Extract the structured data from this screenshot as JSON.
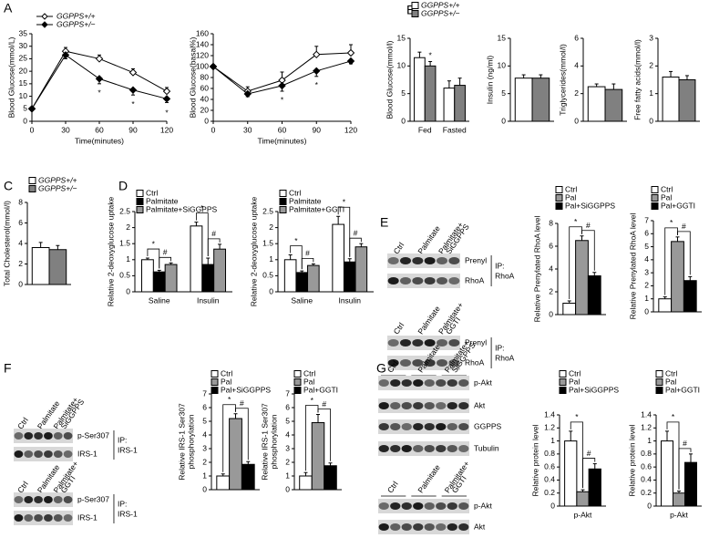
{
  "panels": [
    "A",
    "B",
    "C",
    "D",
    "E",
    "F",
    "G"
  ],
  "chart_data": [
    {
      "type": "line",
      "ylabel": "Blood Glucose(mmol/L)",
      "xlabel": "Time(minutes)",
      "x": [
        0,
        30,
        60,
        90,
        120
      ],
      "xlim": [
        0,
        120
      ],
      "xticks": [
        0,
        30,
        60,
        90,
        120
      ],
      "ylim": [
        0,
        35
      ],
      "yticks": [
        0,
        5,
        10,
        15,
        20,
        25,
        30,
        35
      ],
      "series": [
        {
          "name": "GGPPS+/+",
          "color": "#000000",
          "marker_fill": "#ffffff",
          "values": [
            5,
            28,
            25,
            19.5,
            12
          ],
          "errors": [
            0.5,
            1.5,
            1.5,
            1.5,
            1.5
          ]
        },
        {
          "name": "GGPPS+/−",
          "color": "#000000",
          "marker_fill": "#000000",
          "values": [
            5,
            26.5,
            17,
            12.5,
            9
          ],
          "errors": [
            0.5,
            1.5,
            2,
            2,
            1.5
          ]
        }
      ],
      "annotations": [
        {
          "text": "*",
          "x": 60
        },
        {
          "text": "*",
          "x": 90
        },
        {
          "text": "*",
          "x": 120
        }
      ]
    },
    {
      "type": "line",
      "ylabel": "Blood Glucose(basal%)",
      "xlabel": "Time(minutes)",
      "x": [
        0,
        30,
        60,
        90,
        120
      ],
      "xlim": [
        0,
        120
      ],
      "xticks": [
        0,
        30,
        60,
        90,
        120
      ],
      "ylim": [
        0,
        160
      ],
      "yticks": [
        0,
        20,
        40,
        60,
        80,
        100,
        120,
        140,
        160
      ],
      "series": [
        {
          "color": "#000000",
          "marker_fill": "#ffffff",
          "values": [
            100,
            55,
            75,
            122,
            125
          ],
          "errors": [
            3,
            8,
            15,
            15,
            15
          ]
        },
        {
          "color": "#000000",
          "marker_fill": "#000000",
          "values": [
            100,
            50,
            65,
            92,
            110
          ],
          "errors": [
            3,
            5,
            10,
            10,
            5
          ]
        }
      ],
      "annotations": [
        {
          "text": "*",
          "x": 60
        },
        {
          "text": "*",
          "x": 90
        }
      ]
    },
    {
      "type": "bar",
      "ylabel": "Blood Glucose(mmol/l)",
      "categories": [
        "Fed",
        "Fasted"
      ],
      "ylim": [
        0,
        15
      ],
      "yticks": [
        0,
        5,
        10,
        15
      ],
      "series": [
        {
          "name": "GGPPS+/+",
          "color": "#ffffff",
          "values": [
            11.5,
            6
          ],
          "errors": [
            1,
            1.3
          ]
        },
        {
          "name": "GGPPS+/−",
          "color": "#808080",
          "values": [
            10,
            6.5
          ],
          "errors": [
            0.8,
            1.3
          ]
        }
      ],
      "annotations": [
        [
          "*"
        ],
        []
      ]
    },
    {
      "type": "bar",
      "ylabel": "Insulin (ng/ml)",
      "categories": [
        null
      ],
      "ylim": [
        0,
        15
      ],
      "yticks": [
        0,
        5,
        10,
        15
      ],
      "series": [
        {
          "color": "#ffffff",
          "values": [
            7.8
          ],
          "errors": [
            0.6
          ]
        },
        {
          "color": "#808080",
          "values": [
            7.8
          ],
          "errors": [
            0.6
          ]
        }
      ]
    },
    {
      "type": "bar",
      "ylabel": "Triglycerides(mmol/l)",
      "categories": [
        null
      ],
      "ylim": [
        0,
        6
      ],
      "yticks": [
        0,
        2,
        4,
        6
      ],
      "series": [
        {
          "color": "#ffffff",
          "values": [
            2.5
          ],
          "errors": [
            0.2
          ]
        },
        {
          "color": "#808080",
          "values": [
            2.3
          ],
          "errors": [
            0.4
          ]
        }
      ]
    },
    {
      "type": "bar",
      "ylabel": "Free fatty acids(mmol/l)",
      "categories": [
        null
      ],
      "ylim": [
        0,
        3
      ],
      "yticks": [
        0,
        1,
        2,
        3
      ],
      "series": [
        {
          "color": "#ffffff",
          "values": [
            1.6
          ],
          "errors": [
            0.2
          ]
        },
        {
          "color": "#808080",
          "values": [
            1.5
          ],
          "errors": [
            0.15
          ]
        }
      ]
    },
    {
      "type": "bar",
      "ylabel": "Total Cholesterol(mmol/l)",
      "categories": [
        null
      ],
      "ylim": [
        0,
        8
      ],
      "yticks": [
        0,
        2,
        4,
        6,
        8
      ],
      "series": [
        {
          "name": "GGPPS+/+",
          "color": "#ffffff",
          "values": [
            3.6
          ],
          "errors": [
            0.5
          ]
        },
        {
          "name": "GGPPS+/−",
          "color": "#808080",
          "values": [
            3.4
          ],
          "errors": [
            0.4
          ]
        }
      ]
    },
    {
      "type": "bar",
      "ylabel": "Relative 2-deoxyglucose uptake",
      "categories": [
        "Saline",
        "Insulin"
      ],
      "ylim": [
        0,
        2.5
      ],
      "yticks": [
        0,
        0.5,
        1,
        1.5,
        2,
        2.5
      ],
      "series": [
        {
          "name": "Ctrl",
          "color": "#ffffff",
          "values": [
            1.0,
            2.05
          ],
          "errors": [
            0.05,
            0.12
          ]
        },
        {
          "name": "Palmitate",
          "color": "#000000",
          "values": [
            0.62,
            0.85
          ],
          "errors": [
            0.05,
            0.2
          ]
        },
        {
          "name": "Palmitate+SiGGPPS",
          "color": "#999999",
          "values": [
            0.85,
            1.33
          ],
          "errors": [
            0.05,
            0.15
          ]
        }
      ],
      "annotations": [
        [
          "*",
          "#"
        ],
        [
          "*",
          "#"
        ]
      ]
    },
    {
      "type": "bar",
      "ylabel": "Relative 2-deoxyglucose uptake",
      "categories": [
        "Saline",
        "Insulin"
      ],
      "ylim": [
        0,
        2.5
      ],
      "yticks": [
        0,
        0.5,
        1,
        1.5,
        2,
        2.5
      ],
      "series": [
        {
          "name": "Ctrl",
          "color": "#ffffff",
          "values": [
            1.0,
            2.1
          ],
          "errors": [
            0.15,
            0.25
          ]
        },
        {
          "name": "Palmitate",
          "color": "#000000",
          "values": [
            0.6,
            0.93
          ],
          "errors": [
            0.05,
            0.1
          ]
        },
        {
          "name": "Palmitate+GGTI",
          "color": "#999999",
          "values": [
            0.82,
            1.4
          ],
          "errors": [
            0.05,
            0.1
          ]
        }
      ],
      "annotations": [
        [
          "*",
          "#"
        ],
        [
          "*",
          "#"
        ]
      ]
    },
    {
      "type": "bar",
      "ylabel": "Relative Prenylated RhoA  level",
      "categories": [
        null
      ],
      "ylim": [
        0,
        8
      ],
      "yticks": [
        0,
        2,
        4,
        6,
        8
      ],
      "series": [
        {
          "name": "Ctrl",
          "color": "#ffffff",
          "values": [
            1
          ],
          "errors": [
            0.2
          ]
        },
        {
          "name": "Pal",
          "color": "#999999",
          "values": [
            6.5
          ],
          "errors": [
            0.4
          ]
        },
        {
          "name": "Pal+SiGGPPS",
          "color": "#000000",
          "values": [
            3.4
          ],
          "errors": [
            0.3
          ]
        }
      ],
      "annotations": [
        [
          "*",
          "#"
        ]
      ]
    },
    {
      "type": "bar",
      "ylabel": "Relative Prenylated RhoA  level",
      "categories": [
        null
      ],
      "ylim": [
        0,
        7
      ],
      "yticks": [
        0,
        1,
        2,
        3,
        4,
        5,
        6,
        7
      ],
      "series": [
        {
          "name": "Ctrl",
          "color": "#ffffff",
          "values": [
            1
          ],
          "errors": [
            0.15
          ]
        },
        {
          "name": "Pal",
          "color": "#999999",
          "values": [
            5.4
          ],
          "errors": [
            0.35
          ]
        },
        {
          "name": "Pal+GGTI",
          "color": "#000000",
          "values": [
            2.4
          ],
          "errors": [
            0.3
          ]
        }
      ],
      "annotations": [
        [
          "*",
          "#"
        ]
      ]
    },
    {
      "type": "bar",
      "ylabel": [
        "Relative IRS-1 Ser307",
        "phosphorylation"
      ],
      "categories": [
        null
      ],
      "ylim": [
        0,
        7
      ],
      "yticks": [
        0,
        1,
        2,
        3,
        4,
        5,
        6,
        7
      ],
      "series": [
        {
          "name": "Ctrl",
          "color": "#ffffff",
          "values": [
            1
          ],
          "errors": [
            0.15
          ]
        },
        {
          "name": "Pal",
          "color": "#999999",
          "values": [
            5.2
          ],
          "errors": [
            0.35
          ]
        },
        {
          "name": "Pal+SiGGPPS",
          "color": "#000000",
          "values": [
            1.85
          ],
          "errors": [
            0.2
          ]
        }
      ],
      "annotations": [
        [
          "*",
          "#"
        ]
      ]
    },
    {
      "type": "bar",
      "ylabel": [
        "Relative IRS-1 Ser307",
        "phosphorylation"
      ],
      "categories": [
        null
      ],
      "ylim": [
        0,
        7
      ],
      "yticks": [
        0,
        1,
        2,
        3,
        4,
        5,
        6,
        7
      ],
      "series": [
        {
          "name": "Ctrl",
          "color": "#ffffff",
          "values": [
            1
          ],
          "errors": [
            0.25
          ]
        },
        {
          "name": "Pal",
          "color": "#999999",
          "values": [
            4.9
          ],
          "errors": [
            0.6
          ]
        },
        {
          "name": "Pal+GGTI",
          "color": "#000000",
          "values": [
            1.75
          ],
          "errors": [
            0.2
          ]
        }
      ],
      "annotations": [
        [
          "*",
          "#"
        ]
      ]
    },
    {
      "type": "bar",
      "ylabel": "Relative protein level",
      "categories": [
        "p-Akt"
      ],
      "ylim": [
        0,
        1.4
      ],
      "yticks": [
        0,
        0.2,
        0.4,
        0.6,
        0.8,
        1,
        1.2,
        1.4
      ],
      "series": [
        {
          "name": "Ctrl",
          "color": "#ffffff",
          "values": [
            1.0
          ],
          "errors": [
            0.15
          ]
        },
        {
          "name": "Pal",
          "color": "#999999",
          "values": [
            0.22
          ],
          "errors": [
            0.03
          ]
        },
        {
          "name": "Pal+SiGGPPS",
          "color": "#000000",
          "values": [
            0.57
          ],
          "errors": [
            0.08
          ]
        }
      ],
      "annotations": [
        [
          "*",
          "#"
        ]
      ]
    },
    {
      "type": "bar",
      "ylabel": "Relative protein level",
      "categories": [
        "p-Akt"
      ],
      "ylim": [
        0,
        1.4
      ],
      "yticks": [
        0,
        0.2,
        0.4,
        0.6,
        0.8,
        1,
        1.2,
        1.4
      ],
      "series": [
        {
          "name": "Ctrl",
          "color": "#ffffff",
          "values": [
            1.0
          ],
          "errors": [
            0.15
          ]
        },
        {
          "name": "Pal",
          "color": "#999999",
          "values": [
            0.2
          ],
          "errors": [
            0.03
          ]
        },
        {
          "name": "Pal+GGTI",
          "color": "#000000",
          "values": [
            0.67
          ],
          "errors": [
            0.13
          ]
        }
      ],
      "annotations": [
        [
          "*",
          "#"
        ]
      ]
    }
  ],
  "blots": [
    {
      "lanes": [
        [
          "Ctrl"
        ],
        [
          "Palmitate"
        ],
        [
          "Palmitate+",
          "SiGGPPS"
        ]
      ],
      "rows": [
        "Prenyl",
        "RhoA"
      ],
      "ip": [
        "IP:",
        "RhoA"
      ]
    },
    {
      "lanes": [
        [
          "Ctrl"
        ],
        [
          "Palmitate"
        ],
        [
          "Palmitate+",
          "GGTI"
        ]
      ],
      "rows": [
        "Prenyl",
        "RhoA"
      ],
      "ip": [
        "IP:",
        "RhoA"
      ]
    },
    {
      "lanes": [
        [
          "Ctrl"
        ],
        [
          "Palmitate"
        ],
        [
          "Palmitate+",
          "SiGGPPS"
        ]
      ],
      "rows": [
        "p-Ser307",
        "IRS-1"
      ],
      "ip": [
        "IP:",
        "IRS-1"
      ]
    },
    {
      "lanes": [
        [
          "Ctrl"
        ],
        [
          "Palmitate"
        ],
        [
          "Palmitate+",
          "GGTI"
        ]
      ],
      "rows": [
        "p-Ser307",
        "IRS-1"
      ],
      "ip": [
        "IP:",
        "IRS-1"
      ]
    },
    {
      "lanes": [
        [
          "Ctrl"
        ],
        [
          "Palmitate"
        ],
        [
          "Palmitate+",
          "SiGGPPS"
        ]
      ],
      "rows": [
        "p-Akt",
        "Akt",
        "GGPPS",
        "Tubulin"
      ]
    },
    {
      "lanes": [
        [
          "Ctrl"
        ],
        [
          "Palmitate"
        ],
        [
          "Palmitate+",
          "GGTI"
        ]
      ],
      "rows": [
        "p-Akt",
        "Akt"
      ]
    }
  ]
}
